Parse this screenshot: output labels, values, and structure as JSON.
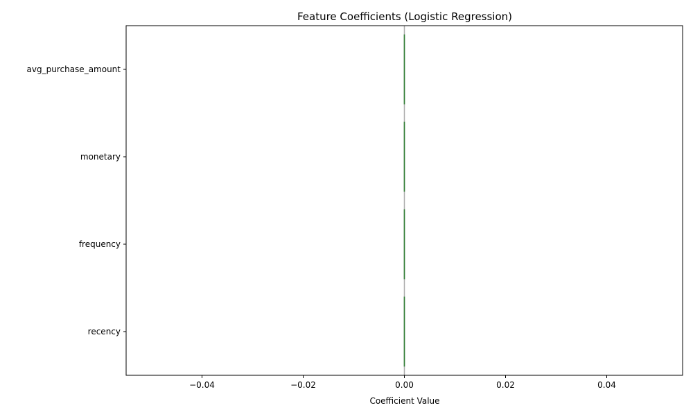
{
  "chart_data": {
    "type": "bar",
    "orientation": "horizontal",
    "title": "Feature Coefficients (Logistic Regression)",
    "xlabel": "Coefficient Value",
    "ylabel": "",
    "categories": [
      "avg_purchase_amount",
      "monetary",
      "frequency",
      "recency"
    ],
    "values": [
      0.0,
      0.0,
      0.0,
      0.0
    ],
    "xlim": [
      -0.055,
      0.055
    ],
    "xticks": [
      -0.04,
      -0.02,
      0.0,
      0.02,
      0.04
    ],
    "xtick_labels": [
      "−0.04",
      "−0.02",
      "0.00",
      "0.02",
      "0.04"
    ],
    "reference_line": 0,
    "grid": false,
    "legend": "none",
    "colors": {
      "bar": "#2e7d32",
      "reference_line": "#aaaaaa",
      "axes": "#000000"
    }
  }
}
